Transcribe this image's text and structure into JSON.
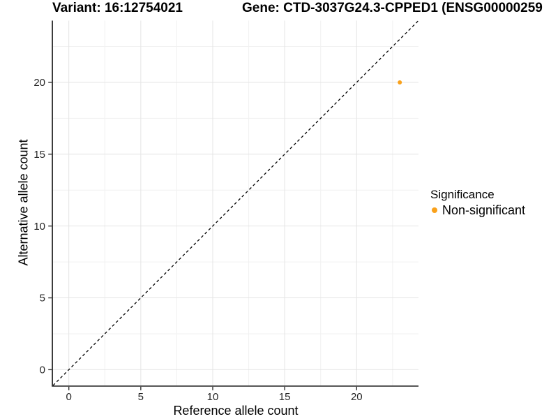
{
  "chart_data": {
    "type": "scatter",
    "title": "Variant: 16:12754021",
    "subtitle_right": "Gene: CTD-3037G24.3-CPPED1 (ENSG00000259",
    "xlabel": "Reference allele count",
    "ylabel": "Alternative allele count",
    "xlim": [
      -1.1,
      24.3
    ],
    "ylim": [
      -1.1,
      24.3
    ],
    "x_ticks": [
      0,
      5,
      10,
      15,
      20
    ],
    "y_ticks": [
      0,
      5,
      10,
      15,
      20
    ],
    "x_minor_gridlines": [
      2.5,
      7.5,
      12.5,
      17.5,
      22.5
    ],
    "y_minor_gridlines": [
      2.5,
      7.5,
      12.5,
      17.5,
      22.5
    ],
    "grid": true,
    "legend_position": "right",
    "legend": {
      "title": "Significance",
      "entries": [
        {
          "label": "Non-significant",
          "color": "#F9A11B"
        }
      ]
    },
    "series": [
      {
        "name": "Non-significant",
        "color": "#F9A11B",
        "points": [
          {
            "x": 23,
            "y": 20
          }
        ]
      }
    ],
    "identity_line": {
      "slope": 1,
      "intercept": 0,
      "style": "dashed",
      "color": "#000000"
    }
  },
  "colors": {
    "background": "#FFFFFF",
    "axis_line": "#333333",
    "tick_mark": "#333333",
    "tick_label": "#262626",
    "grid_major": "#E4E4E4",
    "grid_minor": "#F1F1F1"
  }
}
